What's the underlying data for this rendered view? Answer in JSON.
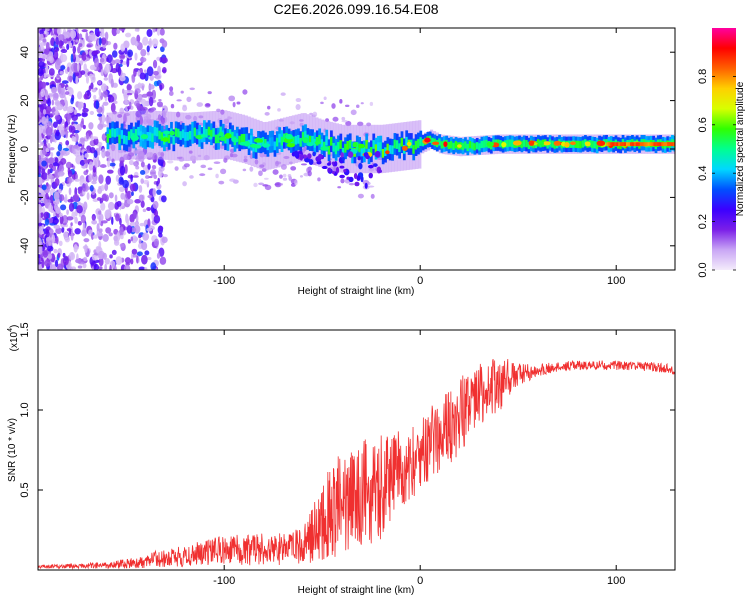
{
  "chart_data": [
    {
      "type": "heatmap",
      "title": "C2E6.2026.099.16.54.E08",
      "xlabel": "Height of straight line (km)",
      "ylabel": "Frequency (Hz)",
      "xlim": [
        -195,
        130
      ],
      "ylim": [
        -50,
        50
      ],
      "xticks": [
        -100,
        0,
        100
      ],
      "yticks": [
        -40,
        -20,
        0,
        20,
        40
      ],
      "xtick_labels": [
        "-100",
        "0",
        "100"
      ],
      "ytick_labels": [
        "-40",
        "-20",
        "0",
        "20",
        "40"
      ],
      "colorbar": {
        "label": "Normalized spectral amplitude",
        "range": [
          0,
          1
        ],
        "ticks": [
          0.0,
          0.2,
          0.4,
          0.6,
          0.8
        ],
        "tick_labels": [
          "0.0",
          "0.2",
          "0.4",
          "0.6",
          "0.8"
        ],
        "colors": [
          "#f4ecfb",
          "#c9a6f5",
          "#7b1fe8",
          "#3b00ff",
          "#0050ff",
          "#00d8ff",
          "#00ff90",
          "#30ff00",
          "#d8ff00",
          "#ffd000",
          "#ff6000",
          "#ff0000",
          "#ff00a0"
        ]
      },
      "trace": {
        "x": [
          -160,
          -140,
          -120,
          -100,
          -90,
          -80,
          -70,
          -60,
          -50,
          -40,
          -30,
          -20,
          -10,
          0,
          5,
          10,
          20,
          40,
          60,
          80,
          100,
          130
        ],
        "frequency": [
          5,
          6,
          5,
          6,
          4,
          1,
          3,
          5,
          2,
          0,
          0,
          0,
          1,
          2,
          4,
          2,
          1,
          2,
          2,
          2,
          2,
          2
        ]
      }
    },
    {
      "type": "line",
      "xlabel": "Height of straight line (km)",
      "ylabel": "SNR (10 * v/v)",
      "scale_note": "(x10",
      "scale_exp": "4",
      "xlim": [
        -195,
        130
      ],
      "ylim": [
        0,
        1.5
      ],
      "xticks": [
        -100,
        0,
        100
      ],
      "yticks": [
        0.5,
        1.0,
        1.5
      ],
      "xtick_labels": [
        "-100",
        "0",
        "100"
      ],
      "ytick_labels": [
        "0.5",
        "1.0",
        "1.5"
      ],
      "color": "#f03030",
      "envelope": {
        "x": [
          -195,
          -160,
          -140,
          -120,
          -100,
          -80,
          -70,
          -60,
          -50,
          -45,
          -40,
          -35,
          -30,
          -25,
          -20,
          -18,
          -10,
          0,
          10,
          20,
          25,
          30,
          40,
          45,
          50,
          60,
          70,
          80,
          100,
          120,
          130
        ],
        "base": [
          0.02,
          0.03,
          0.05,
          0.07,
          0.09,
          0.1,
          0.1,
          0.12,
          0.18,
          0.25,
          0.3,
          0.35,
          0.4,
          0.45,
          0.5,
          0.55,
          0.62,
          0.72,
          0.85,
          0.95,
          1.05,
          1.1,
          1.15,
          1.2,
          1.22,
          1.25,
          1.27,
          1.28,
          1.28,
          1.27,
          1.25
        ],
        "noise": [
          0.01,
          0.02,
          0.04,
          0.07,
          0.1,
          0.1,
          0.1,
          0.12,
          0.3,
          0.35,
          0.35,
          0.3,
          0.28,
          0.3,
          0.35,
          0.3,
          0.25,
          0.22,
          0.25,
          0.25,
          0.22,
          0.2,
          0.18,
          0.12,
          0.07,
          0.04,
          0.03,
          0.03,
          0.03,
          0.03,
          0.03
        ]
      }
    }
  ]
}
